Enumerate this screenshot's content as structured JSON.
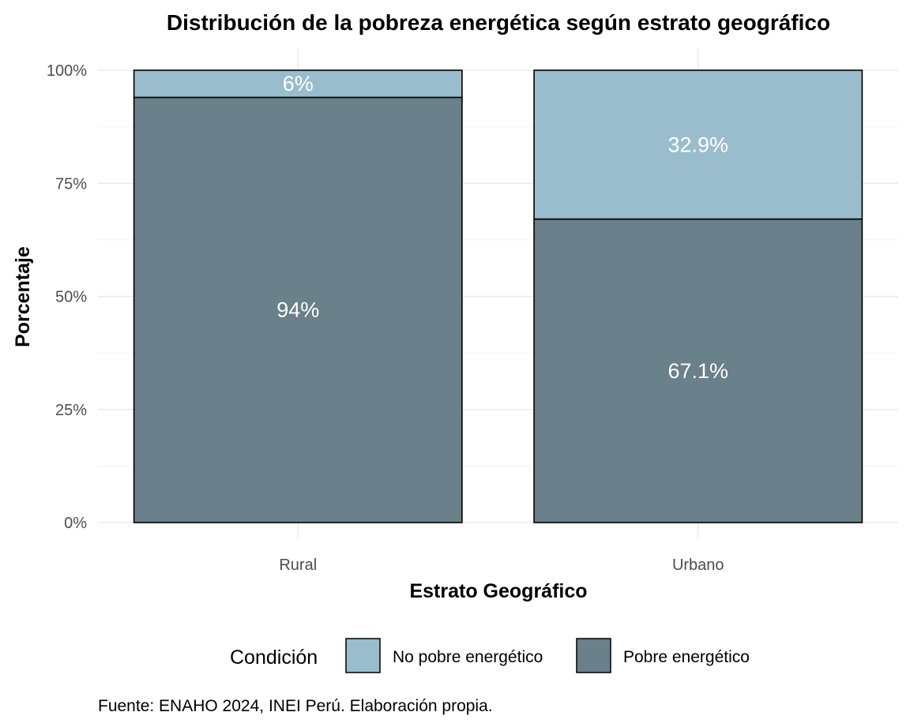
{
  "chart_data": {
    "type": "bar",
    "stacked": true,
    "percent_scale": true,
    "title": "Distribución de la pobreza energética según estrato geográfico",
    "xlabel": "Estrato Geográfico",
    "ylabel": "Porcentaje",
    "categories": [
      "Rural",
      "Urbano"
    ],
    "ylim": [
      0,
      100
    ],
    "yticks": [
      0,
      25,
      50,
      75,
      100
    ],
    "ytick_labels": [
      "0%",
      "25%",
      "50%",
      "75%",
      "100%"
    ],
    "grid": true,
    "series": [
      {
        "name": "Pobre energético",
        "values": [
          94,
          67.1
        ],
        "labels": [
          "94%",
          "67.1%"
        ],
        "color": "#6a808a"
      },
      {
        "name": "No pobre energético",
        "values": [
          6,
          32.9
        ],
        "labels": [
          "6%",
          "32.9%"
        ],
        "color": "#99bdcc"
      }
    ],
    "legend": {
      "title": "Condición",
      "position": "bottom",
      "entries": [
        "No pobre energético",
        "Pobre energético"
      ]
    },
    "caption": "Fuente: ENAHO 2024, INEI Perú. Elaboración propia."
  }
}
